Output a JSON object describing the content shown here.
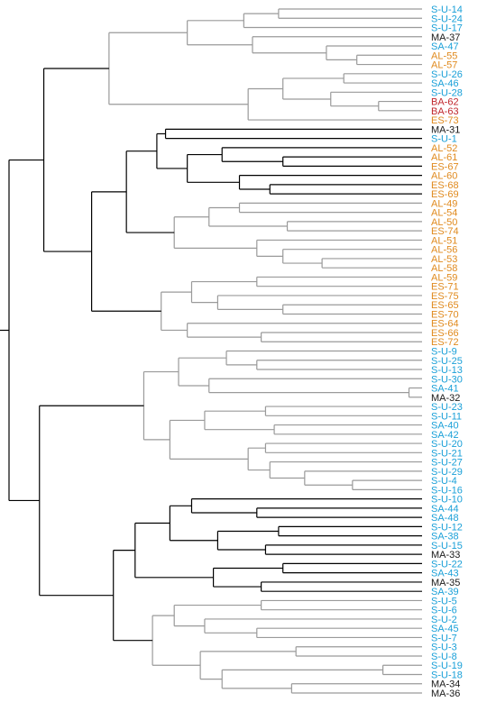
{
  "leaves": [
    {
      "label": "S-U-14",
      "color": "#1aa0d8"
    },
    {
      "label": "S-U-24",
      "color": "#1aa0d8"
    },
    {
      "label": "S-U-17",
      "color": "#1aa0d8"
    },
    {
      "label": "MA-37",
      "color": "#1a1a1a"
    },
    {
      "label": "SA-47",
      "color": "#1aa0d8"
    },
    {
      "label": "AL-55",
      "color": "#e08a1e"
    },
    {
      "label": "AL-57",
      "color": "#e08a1e"
    },
    {
      "label": "S-U-26",
      "color": "#1aa0d8"
    },
    {
      "label": "SA-46",
      "color": "#1aa0d8"
    },
    {
      "label": "S-U-28",
      "color": "#1aa0d8"
    },
    {
      "label": "BA-62",
      "color": "#c0262c"
    },
    {
      "label": "BA-63",
      "color": "#c0262c"
    },
    {
      "label": "ES-73",
      "color": "#e08a1e"
    },
    {
      "label": "MA-31",
      "color": "#1a1a1a"
    },
    {
      "label": "S-U-1",
      "color": "#1aa0d8"
    },
    {
      "label": "AL-52",
      "color": "#e08a1e"
    },
    {
      "label": "AL-61",
      "color": "#e08a1e"
    },
    {
      "label": "ES-67",
      "color": "#e08a1e"
    },
    {
      "label": "AL-60",
      "color": "#e08a1e"
    },
    {
      "label": "ES-68",
      "color": "#e08a1e"
    },
    {
      "label": "ES-69",
      "color": "#e08a1e"
    },
    {
      "label": "AL-49",
      "color": "#e08a1e"
    },
    {
      "label": "AL-54",
      "color": "#e08a1e"
    },
    {
      "label": "AL-50",
      "color": "#e08a1e"
    },
    {
      "label": "ES-74",
      "color": "#e08a1e"
    },
    {
      "label": "AL-51",
      "color": "#e08a1e"
    },
    {
      "label": "AL-56",
      "color": "#e08a1e"
    },
    {
      "label": "AL-53",
      "color": "#e08a1e"
    },
    {
      "label": "AL-58",
      "color": "#e08a1e"
    },
    {
      "label": "AL-59",
      "color": "#e08a1e"
    },
    {
      "label": "ES-71",
      "color": "#e08a1e"
    },
    {
      "label": "ES-75",
      "color": "#e08a1e"
    },
    {
      "label": "ES-65",
      "color": "#e08a1e"
    },
    {
      "label": "ES-70",
      "color": "#e08a1e"
    },
    {
      "label": "ES-64",
      "color": "#e08a1e"
    },
    {
      "label": "ES-66",
      "color": "#e08a1e"
    },
    {
      "label": "ES-72",
      "color": "#e08a1e"
    },
    {
      "label": "S-U-9",
      "color": "#1aa0d8"
    },
    {
      "label": "S-U-25",
      "color": "#1aa0d8"
    },
    {
      "label": "S-U-13",
      "color": "#1aa0d8"
    },
    {
      "label": "S-U-30",
      "color": "#1aa0d8"
    },
    {
      "label": "SA-41",
      "color": "#1aa0d8"
    },
    {
      "label": "MA-32",
      "color": "#1a1a1a"
    },
    {
      "label": "S-U-23",
      "color": "#1aa0d8"
    },
    {
      "label": "S-U-11",
      "color": "#1aa0d8"
    },
    {
      "label": "SA-40",
      "color": "#1aa0d8"
    },
    {
      "label": "SA-42",
      "color": "#1aa0d8"
    },
    {
      "label": "S-U-20",
      "color": "#1aa0d8"
    },
    {
      "label": "S-U-21",
      "color": "#1aa0d8"
    },
    {
      "label": "S-U-27",
      "color": "#1aa0d8"
    },
    {
      "label": "S-U-29",
      "color": "#1aa0d8"
    },
    {
      "label": "S-U-4",
      "color": "#1aa0d8"
    },
    {
      "label": "S-U-16",
      "color": "#1aa0d8"
    },
    {
      "label": "S-U-10",
      "color": "#1aa0d8"
    },
    {
      "label": "SA-44",
      "color": "#1aa0d8"
    },
    {
      "label": "SA-48",
      "color": "#1aa0d8"
    },
    {
      "label": "S-U-12",
      "color": "#1aa0d8"
    },
    {
      "label": "SA-38",
      "color": "#1aa0d8"
    },
    {
      "label": "S-U-15",
      "color": "#1aa0d8"
    },
    {
      "label": "MA-33",
      "color": "#1a1a1a"
    },
    {
      "label": "S-U-22",
      "color": "#1aa0d8"
    },
    {
      "label": "SA-43",
      "color": "#1aa0d8"
    },
    {
      "label": "MA-35",
      "color": "#1a1a1a"
    },
    {
      "label": "SA-39",
      "color": "#1aa0d8"
    },
    {
      "label": "S-U-5",
      "color": "#1aa0d8"
    },
    {
      "label": "S-U-6",
      "color": "#1aa0d8"
    },
    {
      "label": "S-U-2",
      "color": "#1aa0d8"
    },
    {
      "label": "SA-45",
      "color": "#1aa0d8"
    },
    {
      "label": "S-U-7",
      "color": "#1aa0d8"
    },
    {
      "label": "S-U-3",
      "color": "#1aa0d8"
    },
    {
      "label": "S-U-8",
      "color": "#1aa0d8"
    },
    {
      "label": "S-U-19",
      "color": "#1aa0d8"
    },
    {
      "label": "S-U-18",
      "color": "#1aa0d8"
    },
    {
      "label": "MA-34",
      "color": "#1a1a1a"
    },
    {
      "label": "MA-36",
      "color": "#1a1a1a"
    }
  ],
  "tree": [
    "root",
    [
      "A",
      [
        "A1",
        [
          "A1a",
          [
            "c1",
            [
              "c1a",
              "S-U-14",
              "S-U-24"
            ],
            "S-U-17"
          ],
          [
            "c2",
            "MA-37",
            [
              "c2a",
              "SA-47",
              [
                "c2b",
                "AL-55",
                "AL-57"
              ]
            ]
          ]
        ],
        [
          "A1b",
          [
            "c3",
            [
              "c3a",
              "S-U-26",
              "SA-46"
            ],
            [
              "c3b",
              "S-U-28",
              [
                "c3c",
                "BA-62",
                "BA-63"
              ]
            ]
          ],
          "ES-73"
        ]
      ],
      [
        "A2",
        [
          "A2a",
          [
            "A2a1",
            [
              "c4",
              "MA-31",
              "S-U-1"
            ],
            [
              "c5",
              [
                "c5a",
                "AL-52",
                [
                  "c5b",
                  "AL-61",
                  "ES-67"
                ]
              ],
              [
                "c5c",
                "AL-60",
                [
                  "c5d",
                  "ES-68",
                  "ES-69"
                ]
              ]
            ]
          ],
          [
            "A2a2",
            [
              "c6",
              [
                "c6a",
                "AL-49",
                "AL-54"
              ],
              [
                "c6b",
                "AL-50",
                "ES-74"
              ]
            ],
            [
              "c7",
              "AL-51",
              [
                "c7a",
                "AL-56",
                [
                  "c7b",
                  "AL-53",
                  "AL-58"
                ]
              ]
            ]
          ]
        ],
        [
          "A2b",
          [
            "c8",
            [
              "c8a",
              "AL-59",
              "ES-71"
            ],
            [
              "c8b",
              "ES-75",
              [
                "c8c",
                "ES-65",
                "ES-70"
              ]
            ]
          ],
          [
            "c9",
            "ES-64",
            [
              "c9a",
              "ES-66",
              "ES-72"
            ]
          ]
        ]
      ]
    ],
    [
      "B",
      [
        "B1",
        [
          "B1a",
          [
            "c10",
            "S-U-9",
            [
              "c10a",
              "S-U-25",
              "S-U-13"
            ]
          ],
          [
            "c11",
            "S-U-30",
            [
              "c11a",
              "SA-41",
              "MA-32"
            ]
          ]
        ],
        [
          "B1b",
          [
            "c12",
            [
              "c12a",
              "S-U-23",
              "S-U-11"
            ],
            [
              "c12b",
              "SA-40",
              "SA-42"
            ]
          ],
          [
            "c13",
            [
              "c13a",
              "S-U-20",
              "S-U-21"
            ],
            [
              "c13b",
              "S-U-27",
              [
                "c13c",
                "S-U-29",
                [
                  "c13d",
                  "S-U-4",
                  "S-U-16"
                ]
              ]
            ]
          ]
        ]
      ],
      [
        "B2",
        [
          "B2a",
          [
            "B2a1",
            [
              "c14",
              "S-U-10",
              [
                "c14a",
                "SA-44",
                "SA-48"
              ]
            ],
            [
              "c15",
              [
                "c15a",
                "S-U-12",
                "SA-38"
              ],
              [
                "c15b",
                "S-U-15",
                "MA-33"
              ]
            ]
          ],
          [
            "c16",
            [
              "c16a",
              "S-U-22",
              "SA-43"
            ],
            [
              "c16b",
              "MA-35",
              "SA-39"
            ]
          ]
        ],
        [
          "B2b",
          [
            "c17",
            [
              "c17a",
              "S-U-5",
              "S-U-6"
            ],
            [
              "c17b",
              "S-U-2",
              [
                "c17c",
                "SA-45",
                "S-U-7"
              ]
            ]
          ],
          [
            "c18",
            [
              "c18a",
              "S-U-3",
              "S-U-8"
            ],
            [
              "c18b",
              [
                "c18c",
                "S-U-19",
                "S-U-18"
              ],
              [
                "c18d",
                "MA-34",
                "MA-36"
              ]
            ]
          ]
        ]
      ]
    ]
  ],
  "heights": {
    "root": 9.5,
    "A": 8.7,
    "B": 8.8,
    "A1": 7.2,
    "A1a": 5.4,
    "c1": 4.1,
    "c1a": 3.3,
    "c2": 3.9,
    "c2a": 2.2,
    "c2b": 1.5,
    "A1b": 4.0,
    "c3": 3.2,
    "c3a": 1.8,
    "c3b": 2.1,
    "c3c": 1.0,
    "A2": 7.6,
    "A2a": 6.8,
    "A2a1": 6.1,
    "c4": 5.9,
    "c5": 5.4,
    "c5a": 4.6,
    "c5b": 3.2,
    "c5c": 4.2,
    "c5d": 3.5,
    "A2a2": 5.7,
    "c6": 4.9,
    "c6a": 4.2,
    "c6b": 3.1,
    "c7": 3.8,
    "c7a": 3.2,
    "c7b": 2.3,
    "A2b": 6.0,
    "c8": 5.3,
    "c8a": 3.8,
    "c8b": 4.7,
    "c8c": 3.2,
    "c9": 5.4,
    "c9a": 3.7,
    "B1": 6.4,
    "B1a": 5.6,
    "c10": 4.5,
    "c10a": 3.8,
    "c11": 4.9,
    "c11a": 0.3,
    "B1b": 5.8,
    "c12": 5.0,
    "c12a": 3.6,
    "c12b": 3.4,
    "c13": 4.0,
    "c13a": 3.6,
    "c13b": 3.5,
    "c13c": 2.7,
    "c13d": 1.6,
    "B2": 7.1,
    "B2a": 6.6,
    "B2a1": 5.8,
    "c14": 5.3,
    "c14a": 3.8,
    "c15": 4.7,
    "c15a": 3.3,
    "c15b": 3.6,
    "c16": 4.8,
    "c16a": 3.2,
    "c16b": 3.7,
    "B2b": 6.2,
    "c17": 5.7,
    "c17a": 3.7,
    "c17b": 5.0,
    "c17c": 3.8,
    "c18": 5.1,
    "c18a": 2.9,
    "c18b": 4.6,
    "c18c": 0.9,
    "c18d": 3.0
  },
  "branch_colors": {
    "dark": "#000000",
    "light": "#9a9a9a"
  },
  "light_nodes": [
    "A1",
    "A2a2",
    "A2b",
    "B1",
    "B2b",
    "c13b",
    "c11"
  ]
}
